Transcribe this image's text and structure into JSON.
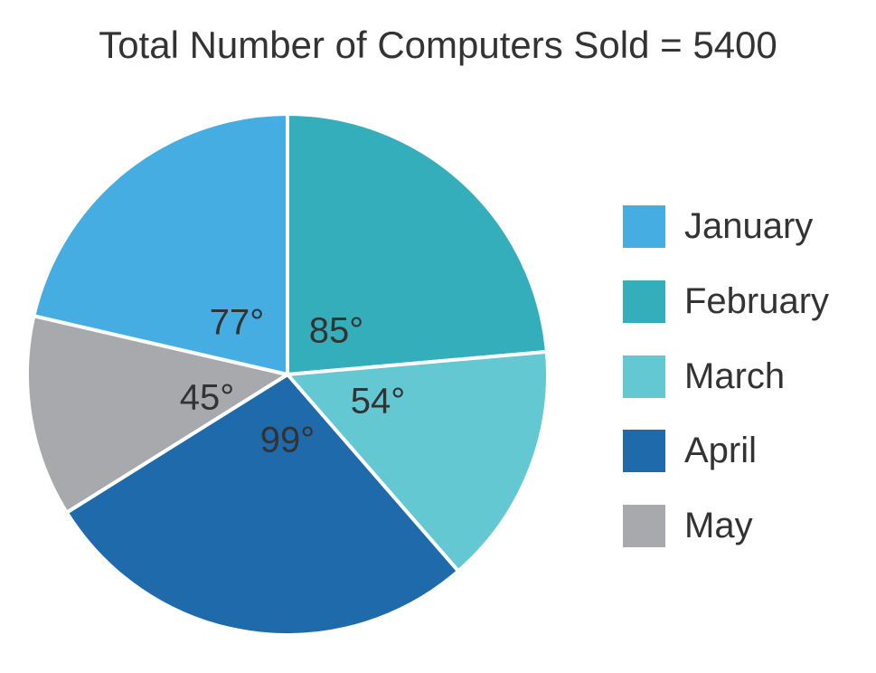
{
  "chart_data": {
    "type": "pie",
    "title": "Total Number of Computers Sold = 5400",
    "unit": "°",
    "slices": [
      {
        "name": "January",
        "value": 77,
        "color": "#45ade2"
      },
      {
        "name": "February",
        "value": 85,
        "color": "#35aebb"
      },
      {
        "name": "March",
        "value": 54,
        "color": "#63c8d1"
      },
      {
        "name": "April",
        "value": 99,
        "color": "#1e6aab"
      },
      {
        "name": "May",
        "value": 45,
        "color": "#a8a9ac"
      }
    ],
    "slice_labels": [
      "77°",
      "85°",
      "54°",
      "99°",
      "45°"
    ],
    "legend_position": "right"
  }
}
